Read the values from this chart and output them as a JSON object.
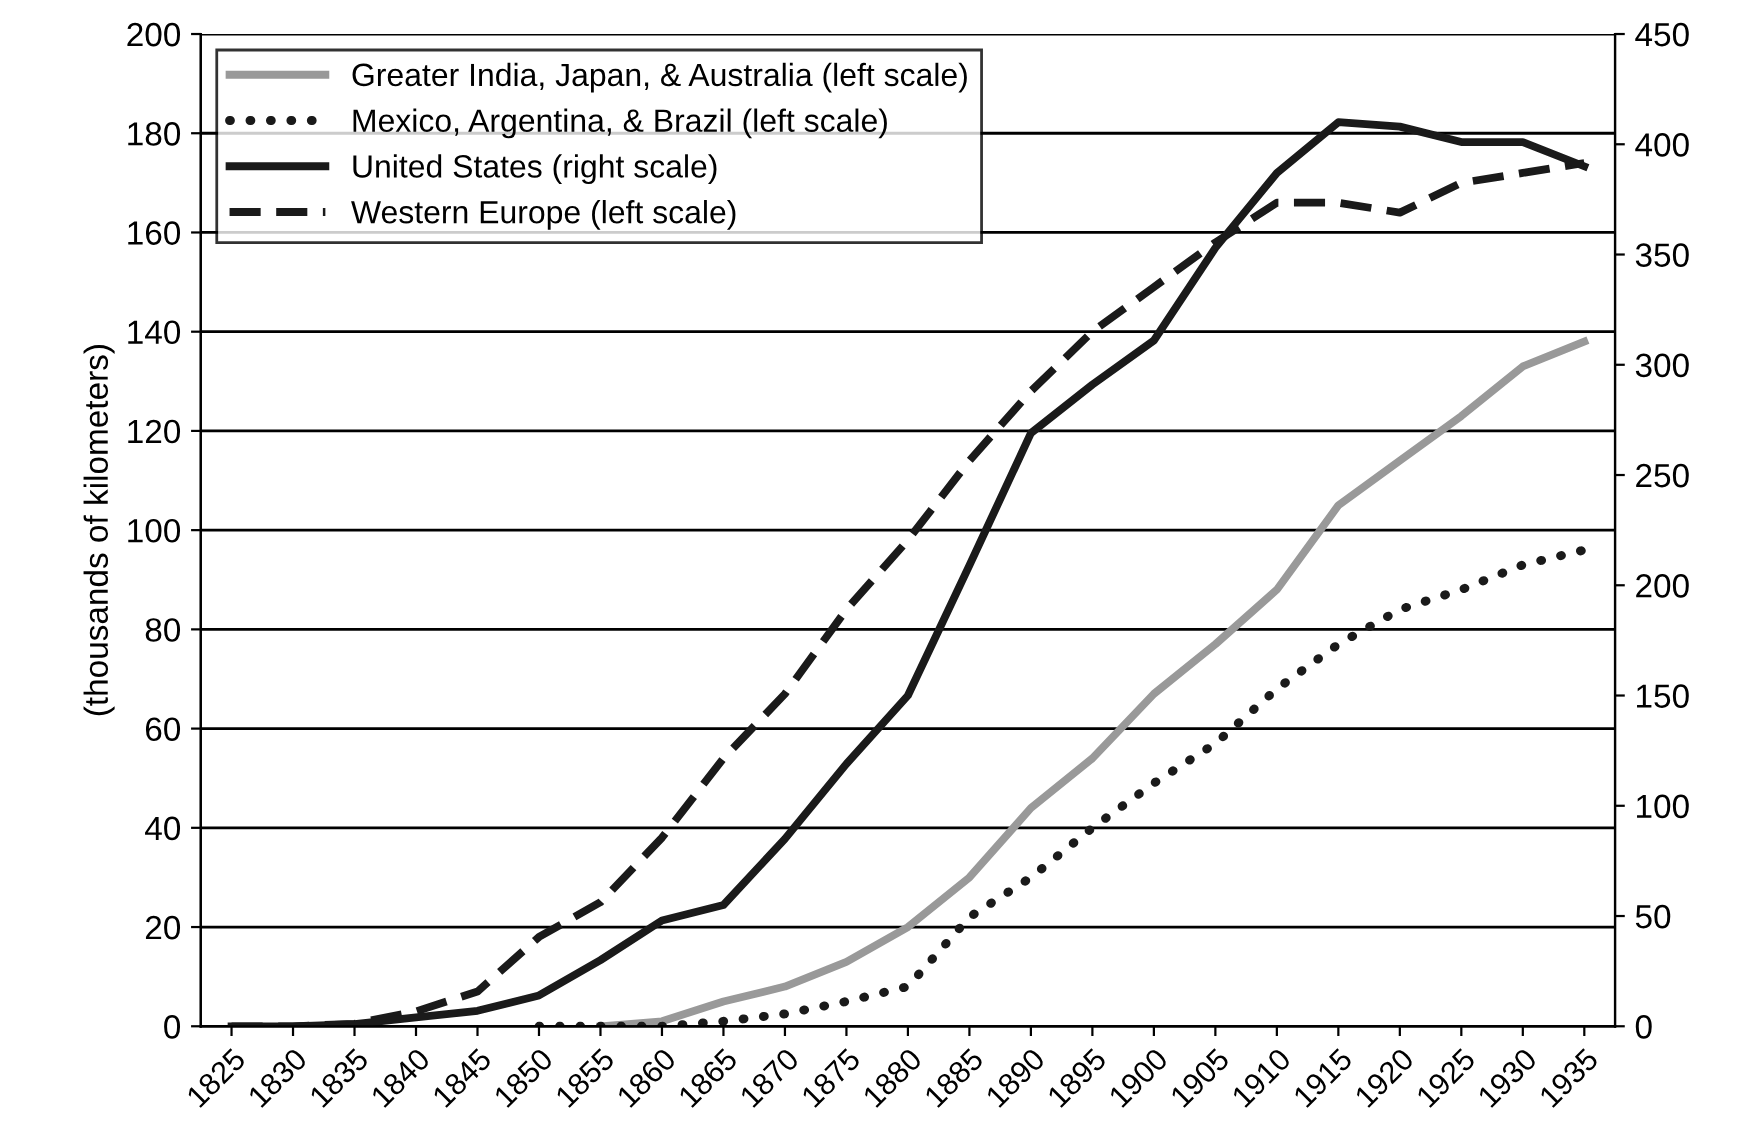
{
  "chart_data": {
    "type": "line",
    "ylabel": "(thousands of kilometers)",
    "categories": [
      "1825",
      "1830",
      "1835",
      "1840",
      "1845",
      "1850",
      "1855",
      "1860",
      "1865",
      "1870",
      "1875",
      "1880",
      "1885",
      "1890",
      "1895",
      "1900",
      "1905",
      "1910",
      "1915",
      "1920",
      "1925",
      "1930",
      "1935"
    ],
    "series": [
      {
        "name": "Greater India, Japan, & Australia (left scale)",
        "color": "#999999",
        "line_style": "solid",
        "values": [
          null,
          null,
          null,
          null,
          null,
          null,
          0,
          1,
          5,
          8,
          13,
          20,
          30,
          44,
          54,
          67,
          77,
          88,
          105,
          114,
          123,
          133,
          138
        ]
      },
      {
        "name": "Mexico, Argentina, & Brazil (left scale)",
        "color": "#1a1a1a",
        "line_style": "dotted",
        "values": [
          null,
          null,
          null,
          null,
          null,
          0,
          0,
          0,
          1,
          2.5,
          5,
          8,
          22,
          30,
          40,
          49,
          57,
          68,
          77,
          84,
          88,
          93,
          96
        ]
      },
      {
        "name": "United States (right scale)",
        "color": "#1a1a1a",
        "line_style": "solid",
        "axis": "y2",
        "values": [
          0,
          0,
          1,
          4,
          7,
          14,
          30,
          48,
          55,
          85,
          119,
          150,
          209,
          269,
          291,
          311,
          353,
          387,
          410,
          408,
          401,
          401,
          390
        ]
      },
      {
        "name": "Western Europe (left scale)",
        "color": "#1a1a1a",
        "line_style": "dashed",
        "values": [
          0,
          0,
          0.5,
          3,
          7,
          18,
          25,
          38,
          54,
          67,
          84,
          98,
          114,
          128,
          140,
          149,
          158,
          166,
          166,
          164,
          170,
          172,
          174
        ]
      }
    ],
    "ylim": [
      0,
      200
    ],
    "yticks": [
      0,
      20,
      40,
      60,
      80,
      100,
      120,
      140,
      160,
      180,
      200
    ],
    "y2lim": [
      0,
      450
    ],
    "y2ticks": [
      0,
      50,
      100,
      150,
      200,
      250,
      300,
      350,
      400,
      450
    ],
    "grid": "y",
    "legend": "top left"
  }
}
